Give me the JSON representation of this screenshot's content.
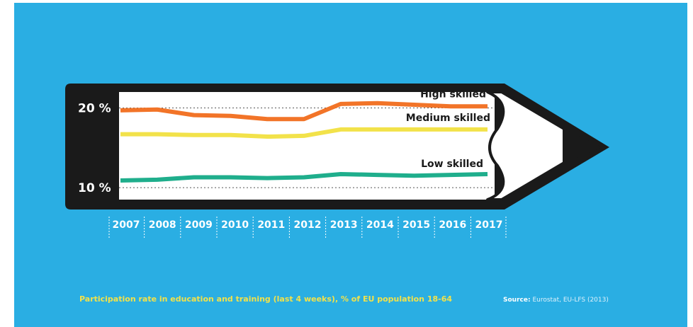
{
  "chart_data": {
    "type": "line",
    "x": [
      "2007",
      "2008",
      "2009",
      "2010",
      "2011",
      "2012",
      "2013",
      "2014",
      "2015",
      "2016",
      "2017"
    ],
    "y_ticks": [
      "20 %",
      "10 %"
    ],
    "y_tick_values": [
      20,
      10
    ],
    "ylim": [
      8.5,
      22
    ],
    "grid": "dotted reference lines at 10 % and 20 %",
    "series": [
      {
        "name": "High skilled",
        "color": "#f27428",
        "values": [
          19.7,
          19.8,
          19.1,
          19.0,
          18.6,
          18.6,
          20.5,
          20.6,
          20.4,
          20.2,
          20.2
        ]
      },
      {
        "name": "Medium skilled",
        "color": "#f2e24a",
        "values": [
          16.7,
          16.7,
          16.6,
          16.6,
          16.4,
          16.5,
          17.3,
          17.3,
          17.3,
          17.3,
          17.3
        ]
      },
      {
        "name": "Low skilled",
        "color": "#1fae8c",
        "values": [
          10.9,
          11.0,
          11.3,
          11.3,
          11.2,
          11.3,
          11.7,
          11.6,
          11.5,
          11.6,
          11.7
        ]
      }
    ]
  },
  "caption": "Participation rate in education and training (last 4 weeks), % of EU population 18-64",
  "source": {
    "label": "Source:",
    "text": "Eurostat, EU-LFS (2013)"
  }
}
